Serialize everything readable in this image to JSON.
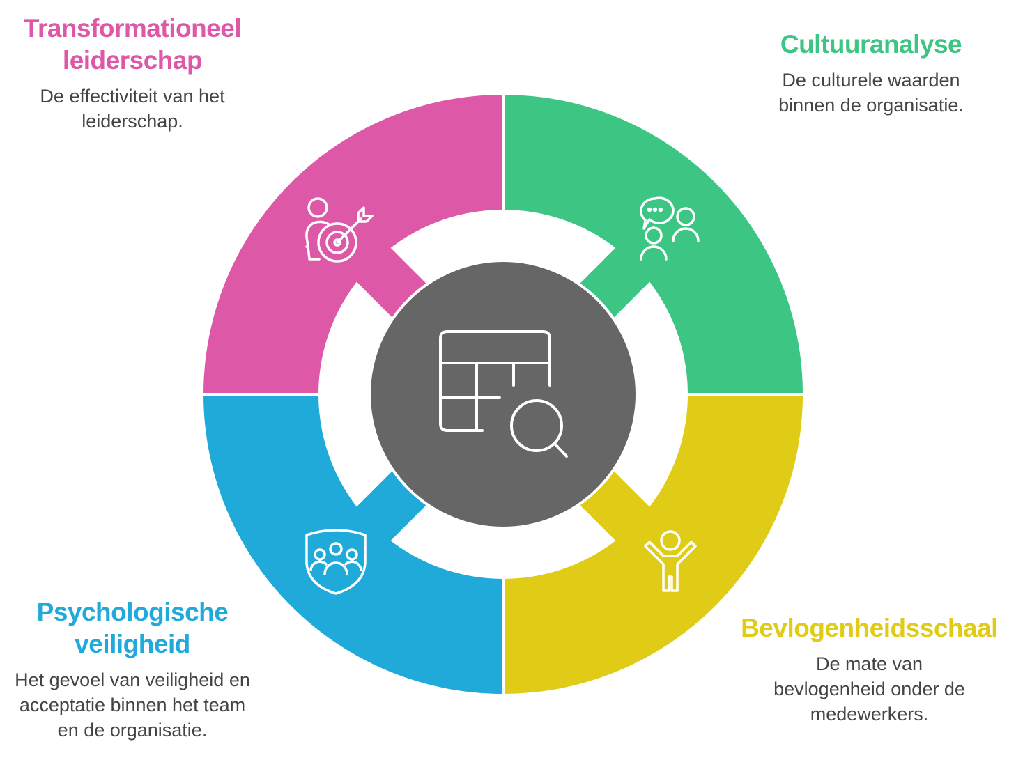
{
  "colors": {
    "pink": "#DD58A7",
    "green": "#3DC584",
    "yellow": "#E0CC16",
    "blue": "#20AADA",
    "center": "#666666"
  },
  "center": {
    "icon": "table-search-icon"
  },
  "sections": [
    {
      "title": "Transformationeel leiderschap",
      "description": "De effectiviteit van het leiderschap.",
      "icon": "person-target-icon",
      "color": "#DD58A7"
    },
    {
      "title": "Cultuuranalyse",
      "description": "De culturele waarden binnen de organisatie.",
      "icon": "people-chat-icon",
      "color": "#3DC584"
    },
    {
      "title": "Bevlogenheidsschaal",
      "description": "De mate van bevlogenheid onder de medewerkers.",
      "icon": "cheering-person-icon",
      "color": "#E0CC16"
    },
    {
      "title": "Psychologische veiligheid",
      "description": "Het gevoel van veiligheid en acceptatie binnen het team en de organisatie.",
      "icon": "shield-team-icon",
      "color": "#20AADA"
    }
  ]
}
